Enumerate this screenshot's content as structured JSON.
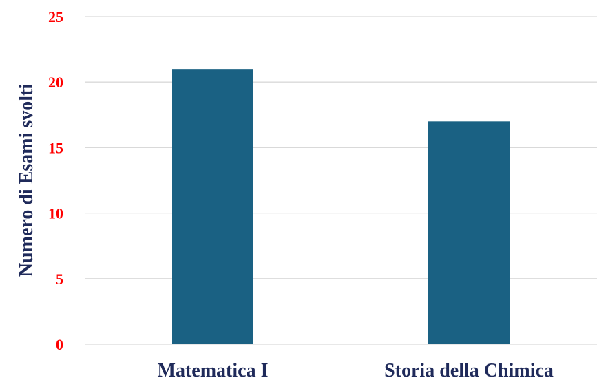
{
  "chart_data": {
    "type": "bar",
    "title": "",
    "xlabel": "",
    "ylabel": "Numero di  Esami svolti",
    "categories": [
      "Matematica I",
      "Storia della Chimica"
    ],
    "values": [
      21,
      17
    ],
    "ylim": [
      0,
      25
    ],
    "yticks": [
      "0",
      "5",
      "10",
      "15",
      "20",
      "25"
    ],
    "grid": true,
    "legend": "none",
    "colors": {
      "bar": "#1A6183",
      "tick_label": "#FF0000",
      "axis_text": "#1F2A5A",
      "grid": "#D9D9D9"
    }
  }
}
